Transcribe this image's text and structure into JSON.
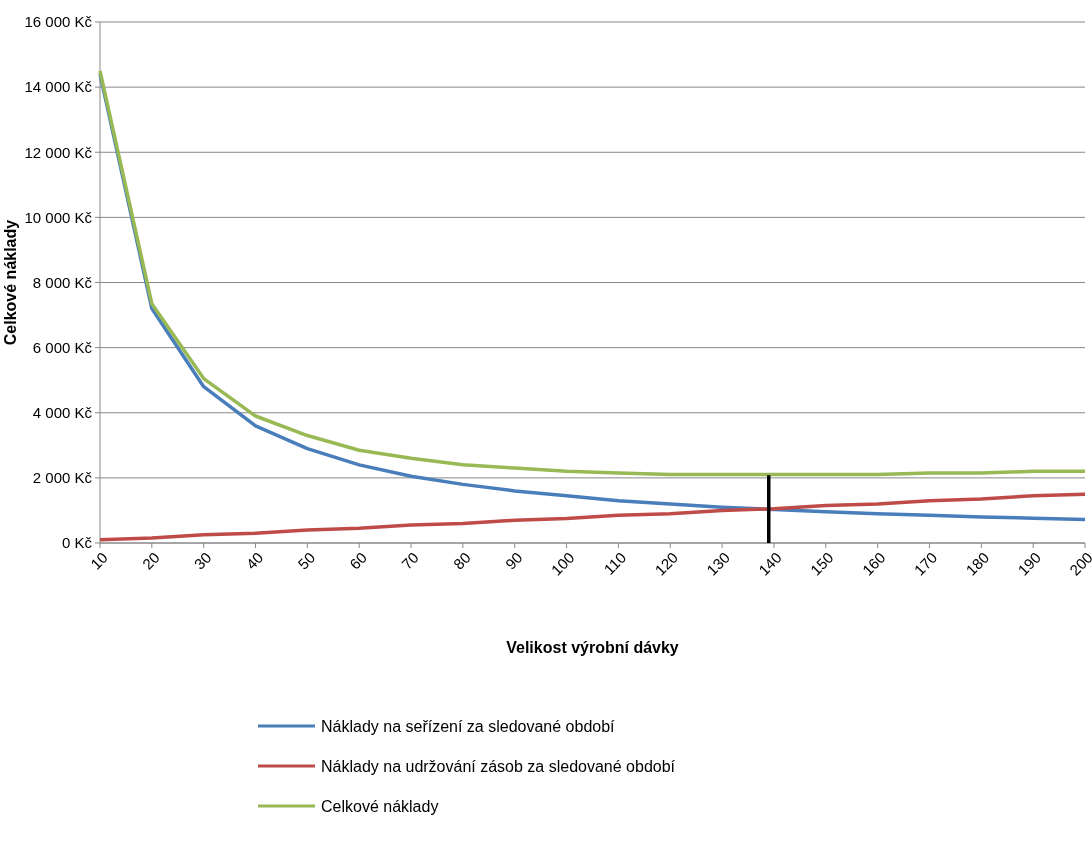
{
  "chart_data": {
    "type": "line",
    "xlabel": "Velikost výrobní dávky",
    "ylabel": "Celkové náklady",
    "x": [
      10,
      20,
      30,
      40,
      50,
      60,
      70,
      80,
      90,
      100,
      110,
      120,
      130,
      140,
      150,
      160,
      170,
      180,
      190,
      200
    ],
    "xlim": [
      10,
      200
    ],
    "xticks": [
      10,
      20,
      30,
      40,
      50,
      60,
      70,
      80,
      90,
      100,
      110,
      120,
      130,
      140,
      150,
      160,
      170,
      180,
      190,
      200
    ],
    "ylim": [
      0,
      16000
    ],
    "yticks": [
      {
        "value": 0,
        "label": "0 Kč"
      },
      {
        "value": 2000,
        "label": "2 000 Kč"
      },
      {
        "value": 4000,
        "label": "4 000 Kč"
      },
      {
        "value": 6000,
        "label": "6 000 Kč"
      },
      {
        "value": 8000,
        "label": "8 000 Kč"
      },
      {
        "value": 10000,
        "label": "10 000 Kč"
      },
      {
        "value": 12000,
        "label": "12 000 Kč"
      },
      {
        "value": 14000,
        "label": "14 000 Kč"
      },
      {
        "value": 16000,
        "label": "16 000 Kč"
      }
    ],
    "grid": "y",
    "legend": "bottom",
    "marker": "none",
    "line_style": "solid",
    "series": [
      {
        "name": "Náklady na seřízení za sledované období",
        "color": "#4a7ebb",
        "values": [
          14400,
          7200,
          4800,
          3600,
          2900,
          2400,
          2050,
          1800,
          1600,
          1450,
          1300,
          1200,
          1100,
          1030,
          960,
          900,
          850,
          800,
          760,
          720
        ]
      },
      {
        "name": "Náklady na udržování zásob za sledované období",
        "color": "#be4b48",
        "values": [
          100,
          150,
          250,
          300,
          400,
          450,
          550,
          600,
          700,
          750,
          850,
          900,
          1000,
          1050,
          1150,
          1200,
          1300,
          1350,
          1450,
          1500
        ]
      },
      {
        "name": "Celkové náklady",
        "color": "#98b954",
        "values": [
          14500,
          7350,
          5050,
          3900,
          3300,
          2850,
          2600,
          2400,
          2300,
          2200,
          2150,
          2100,
          2100,
          2100,
          2100,
          2100,
          2150,
          2150,
          2200,
          2200
        ]
      },
      {
        "color": "#000000",
        "x": [
          139,
          139
        ],
        "values": [
          0,
          2080
        ]
      }
    ]
  }
}
